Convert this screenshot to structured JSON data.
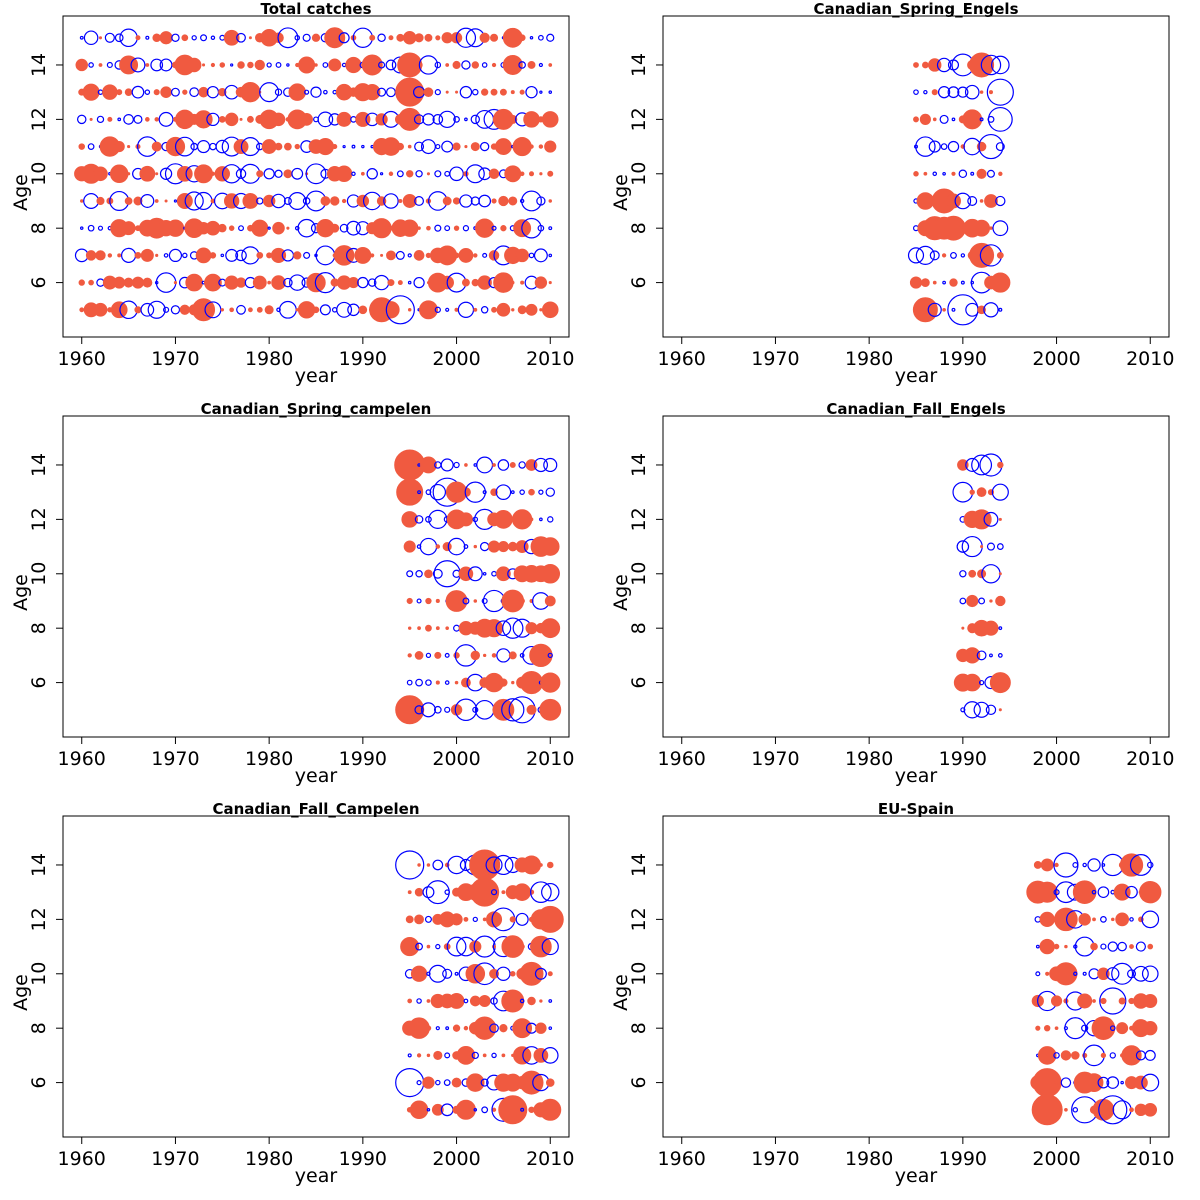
{
  "figure": {
    "colors": {
      "positive": "#f05a40",
      "negative": "#0000ff",
      "frame": "#000000"
    }
  },
  "chart_data": [
    {
      "type": "scatter",
      "subtype": "bubble-residuals",
      "title": "Total catches",
      "xlabel": "year",
      "ylabel": "Age",
      "xlim": [
        1958,
        2012
      ],
      "ylim": [
        4.0,
        15.8
      ],
      "xticks": [
        1960,
        1970,
        1980,
        1990,
        2000,
        2010
      ],
      "yticks": [
        6,
        8,
        10,
        12,
        14
      ],
      "years": [
        1960,
        2010
      ],
      "ages": [
        5,
        15
      ],
      "seed": 11,
      "scale": 1.0,
      "big_points": [
        {
          "x": 1994,
          "y": 5,
          "r": 14,
          "sign": "neg"
        },
        {
          "x": 1992,
          "y": 5,
          "r": 12,
          "sign": "pos"
        },
        {
          "x": 1973,
          "y": 5,
          "r": 11,
          "sign": "pos"
        },
        {
          "x": 1995,
          "y": 13,
          "r": 14,
          "sign": "pos"
        },
        {
          "x": 1995,
          "y": 14,
          "r": 12,
          "sign": "pos"
        },
        {
          "x": 1986,
          "y": 6,
          "r": 10,
          "sign": "neg"
        },
        {
          "x": 1995,
          "y": 12,
          "r": 11,
          "sign": "pos"
        }
      ]
    },
    {
      "type": "scatter",
      "subtype": "bubble-residuals",
      "title": "Canadian_Spring_Engels",
      "xlabel": "year",
      "ylabel": "Age",
      "xlim": [
        1958,
        2012
      ],
      "ylim": [
        4.0,
        15.8
      ],
      "xticks": [
        1960,
        1970,
        1980,
        1990,
        2000,
        2010
      ],
      "yticks": [
        6,
        8,
        10,
        12,
        14
      ],
      "years": [
        1985,
        1994
      ],
      "ages": [
        5,
        14
      ],
      "seed": 23,
      "scale": 1.2,
      "big_points": [
        {
          "x": 1990,
          "y": 5,
          "r": 15,
          "sign": "neg"
        },
        {
          "x": 1986,
          "y": 5,
          "r": 12,
          "sign": "pos"
        },
        {
          "x": 1994,
          "y": 13,
          "r": 13,
          "sign": "neg"
        },
        {
          "x": 1993,
          "y": 11,
          "r": 12,
          "sign": "neg"
        },
        {
          "x": 1992,
          "y": 14,
          "r": 12,
          "sign": "pos"
        },
        {
          "x": 1992,
          "y": 7,
          "r": 12,
          "sign": "pos"
        }
      ]
    },
    {
      "type": "scatter",
      "subtype": "bubble-residuals",
      "title": "Canadian_Spring_campelen",
      "xlabel": "year",
      "ylabel": "Age",
      "xlim": [
        1958,
        2012
      ],
      "ylim": [
        4.0,
        15.8
      ],
      "xticks": [
        1960,
        1970,
        1980,
        1990,
        2000,
        2010
      ],
      "yticks": [
        6,
        8,
        10,
        12,
        14
      ],
      "years": [
        1995,
        2010
      ],
      "ages": [
        5,
        14
      ],
      "seed": 37,
      "scale": 1.15,
      "big_points": [
        {
          "x": 1995,
          "y": 14,
          "r": 15,
          "sign": "pos"
        },
        {
          "x": 1995,
          "y": 13,
          "r": 13,
          "sign": "pos"
        },
        {
          "x": 1995,
          "y": 5,
          "r": 14,
          "sign": "pos"
        },
        {
          "x": 1999,
          "y": 13,
          "r": 14,
          "sign": "neg"
        },
        {
          "x": 2007,
          "y": 5,
          "r": 13,
          "sign": "neg"
        },
        {
          "x": 1999,
          "y": 10,
          "r": 13,
          "sign": "neg"
        }
      ]
    },
    {
      "type": "scatter",
      "subtype": "bubble-residuals",
      "title": "Canadian_Fall_Engels",
      "xlabel": "year",
      "ylabel": "Age",
      "xlim": [
        1958,
        2012
      ],
      "ylim": [
        4.0,
        15.8
      ],
      "xticks": [
        1960,
        1970,
        1980,
        1990,
        2000,
        2010
      ],
      "yticks": [
        6,
        8,
        10,
        12,
        14
      ],
      "years": [
        1990,
        1994
      ],
      "ages": [
        5,
        14
      ],
      "seed": 41,
      "scale": 1.0,
      "big_points": [
        {
          "x": 1993,
          "y": 14,
          "r": 11,
          "sign": "neg"
        },
        {
          "x": 1991,
          "y": 11,
          "r": 10,
          "sign": "neg"
        },
        {
          "x": 1994,
          "y": 6,
          "r": 10,
          "sign": "pos"
        }
      ]
    },
    {
      "type": "scatter",
      "subtype": "bubble-residuals",
      "title": "Canadian_Fall_Campelen",
      "xlabel": "year",
      "ylabel": "Age",
      "xlim": [
        1958,
        2012
      ],
      "ylim": [
        4.0,
        15.8
      ],
      "xticks": [
        1960,
        1970,
        1980,
        1990,
        2000,
        2010
      ],
      "yticks": [
        6,
        8,
        10,
        12,
        14
      ],
      "years": [
        1995,
        2010
      ],
      "ages": [
        5,
        14
      ],
      "seed": 53,
      "scale": 1.15,
      "big_points": [
        {
          "x": 1995,
          "y": 14,
          "r": 14,
          "sign": "neg"
        },
        {
          "x": 2003,
          "y": 14,
          "r": 15,
          "sign": "pos"
        },
        {
          "x": 2003,
          "y": 13,
          "r": 14,
          "sign": "pos"
        },
        {
          "x": 1995,
          "y": 6,
          "r": 14,
          "sign": "neg"
        },
        {
          "x": 2006,
          "y": 5,
          "r": 14,
          "sign": "pos"
        },
        {
          "x": 2010,
          "y": 12,
          "r": 13,
          "sign": "pos"
        }
      ]
    },
    {
      "type": "scatter",
      "subtype": "bubble-residuals",
      "title": "EU-Spain",
      "xlabel": "year",
      "ylabel": "Age",
      "xlim": [
        1958,
        2012
      ],
      "ylim": [
        4.0,
        15.8
      ],
      "xticks": [
        1960,
        1970,
        1980,
        1990,
        2000,
        2010
      ],
      "yticks": [
        6,
        8,
        10,
        12,
        14
      ],
      "years": [
        1998,
        2010
      ],
      "ages": [
        5,
        14
      ],
      "seed": 67,
      "scale": 1.15,
      "big_points": [
        {
          "x": 1999,
          "y": 5,
          "r": 15,
          "sign": "pos"
        },
        {
          "x": 1999,
          "y": 6,
          "r": 14,
          "sign": "pos"
        },
        {
          "x": 2006,
          "y": 5,
          "r": 14,
          "sign": "neg"
        },
        {
          "x": 2003,
          "y": 5,
          "r": 13,
          "sign": "neg"
        },
        {
          "x": 2006,
          "y": 9,
          "r": 13,
          "sign": "neg"
        },
        {
          "x": 2001,
          "y": 14,
          "r": 12,
          "sign": "neg"
        }
      ]
    }
  ]
}
